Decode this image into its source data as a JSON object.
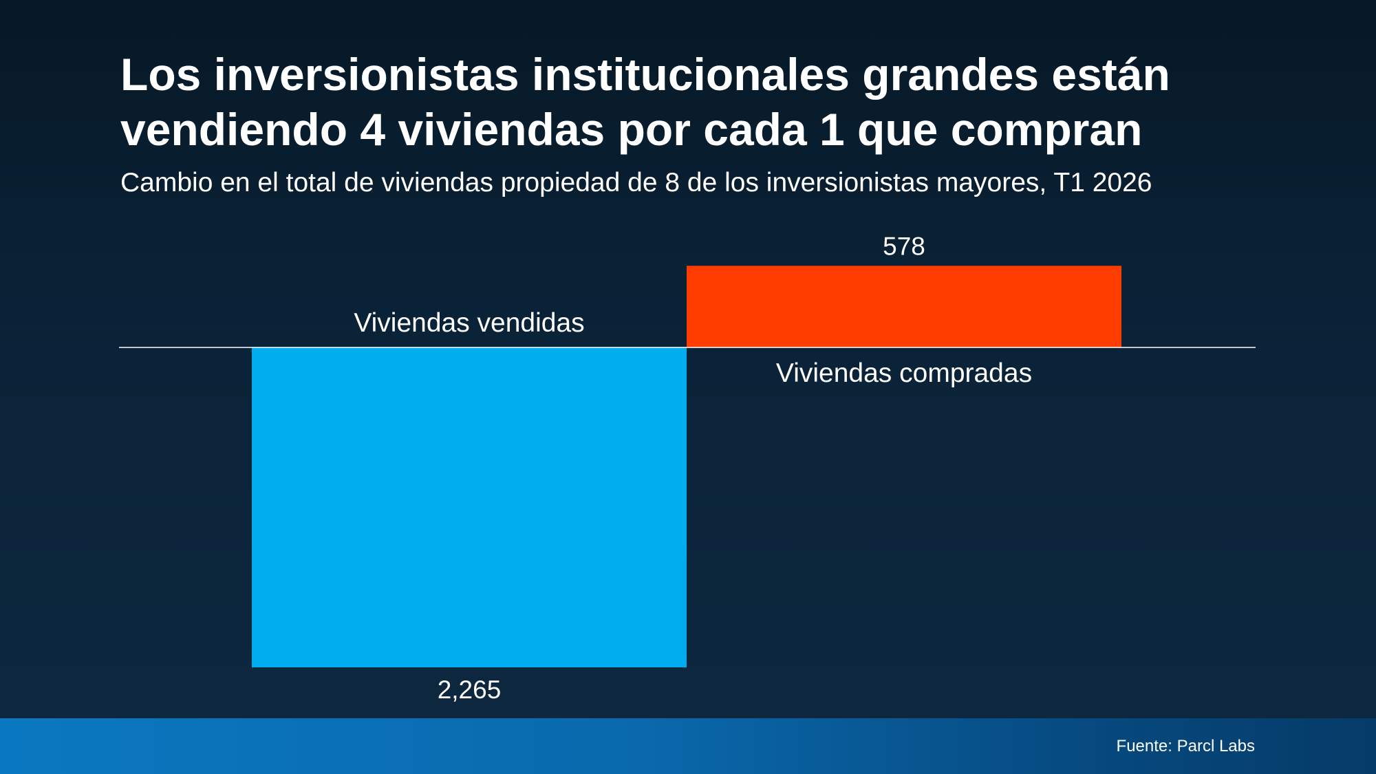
{
  "title": "Los inversionistas institucionales grandes están vendiendo 4 viviendas por cada 1 que compran",
  "subtitle": "Cambio en el total de viviendas propiedad de 8 de los inversionistas mayores, T1 2026",
  "source": "Fuente: Parcl Labs",
  "colors": {
    "sold": "#00aeef",
    "bought": "#ff3c00",
    "background": "#0a2236",
    "footer": "#0a6aae"
  },
  "chart_data": {
    "type": "bar",
    "categories": [
      "Viviendas vendidas",
      "Viviendas compradas"
    ],
    "values": [
      -2265,
      578
    ],
    "value_labels": [
      "2,265",
      "578"
    ],
    "title": "Los inversionistas institucionales grandes están vendiendo 4 viviendas por cada 1 que compran",
    "subtitle": "Cambio en el total de viviendas propiedad de 8 de los inversionistas mayores, T1 2026",
    "xlabel": "",
    "ylabel": "",
    "grid": false,
    "legend": "none"
  }
}
